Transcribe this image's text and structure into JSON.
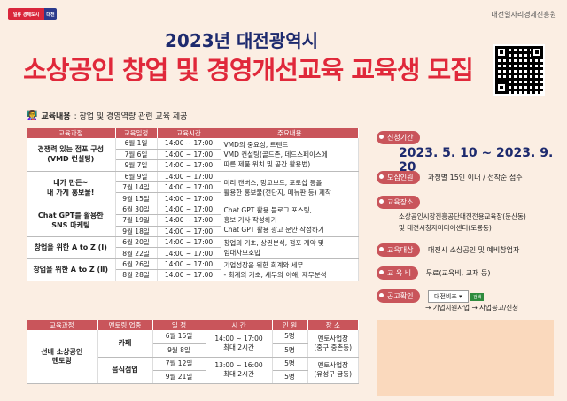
{
  "header": {
    "logo_main": "일류 경제도시",
    "logo_tag": "대전",
    "org": "대전일자리경제진흥원",
    "title1": "2023년 대전광역시",
    "title2": "소상공인 창업 및 경영개선교육 교육생 모집"
  },
  "edu": {
    "label": "교육내용",
    "text": ": 창업 및 경영역량 관련 교육 제공"
  },
  "table1": {
    "headers": [
      "교육과정",
      "교육일정",
      "교육시간",
      "주요내용"
    ],
    "courses": [
      {
        "name": "경쟁력 있는 점포 구성\n(VMD 컨설팅)",
        "dates": [
          "6월 1일",
          "7월 6일",
          "9월 7일"
        ],
        "times": [
          "14:00 ~ 17:00",
          "14:00 ~ 17:00",
          "14:00 ~ 17:00"
        ],
        "desc": "VMD의 중요성, 트렌드\nVMD 컨설팅(골드존, 데드스페이스에\n따른 제품 위치 및 공간 활용법)"
      },
      {
        "name": "내가 만든~\n내 가게 홍보물!",
        "dates": [
          "6월 9일",
          "7월 14일",
          "9월 15일"
        ],
        "times": [
          "14:00 ~ 17:00",
          "14:00 ~ 17:00",
          "14:00 ~ 17:00"
        ],
        "desc": "미리 캔버스, 망고보드, 포토샵 등을\n활용한 홍보물(전단지, 메뉴판 등) 제작"
      },
      {
        "name": "Chat GPT를 활용한\nSNS 마케팅",
        "dates": [
          "6월 30일",
          "7월 19일",
          "9월 18일"
        ],
        "times": [
          "14:00 ~ 17:00",
          "14:00 ~ 17:00",
          "14:00 ~ 17:00"
        ],
        "desc": "Chat GPT 활용 블로그 포스팅,\n홍보 기사 작성하기\nChat GPT 활용 광고 문안 작성하기"
      },
      {
        "name": "창업을 위한 A to Z (Ⅰ)",
        "dates": [
          "6월 20일",
          "8월 22일"
        ],
        "times": [
          "14:00 ~ 17:00",
          "14:00 ~ 17:00"
        ],
        "desc": "창업의 기초, 상권분석, 점포 계약 및\n임대차보호법"
      },
      {
        "name": "창업을 위한 A to Z (Ⅱ)",
        "dates": [
          "6월 26일",
          "8월 28일"
        ],
        "times": [
          "14:00 ~ 17:00",
          "14:00 ~ 17:00"
        ],
        "desc": "기업성장을 위한 회계와 세무\n- 회계의 기초, 세무의 이해, 재무분석"
      }
    ]
  },
  "table2": {
    "headers": [
      "교육과정",
      "멘토링 업종",
      "일 정",
      "시 간",
      "인 원",
      "장 소"
    ],
    "course": "선배 소상공인\n멘토링",
    "rows": [
      {
        "type": "카페",
        "dates": [
          "6월 15일",
          "9월 8일"
        ],
        "time": "14:00 ~ 17:00\n최대 2시간",
        "people": [
          "5명",
          "5명"
        ],
        "place": "멘토사업장\n(중구 중촌동)"
      },
      {
        "type": "음식점업",
        "dates": [
          "7월 12일",
          "9월 21일"
        ],
        "time": "13:00 ~ 16:00\n최대 2시간",
        "people": [
          "5명",
          "5명"
        ],
        "place": "멘토사업장\n(유성구 궁동)"
      }
    ]
  },
  "info": {
    "period_label": "신청기간",
    "period_value": "2023. 5. 10 ~ 2023. 9. 20",
    "people_label": "모집인원",
    "people_value": "과정별 15인 이내 / 선착순 접수",
    "place_label": "교육장소",
    "place_value1": "소상공인시장진흥공단대전전용교육장(둔산동)",
    "place_value2": "및 대전시청자미디어센터(도룡동)",
    "target_label": "교육대상",
    "target_value": "대전시 소상공인 및 예비창업자",
    "fee_label": "교 육 비",
    "fee_value": "무료(교육비, 교재 등)",
    "check_label": "공고확인",
    "check_select": "대전비즈 ▾",
    "check_go": "검색",
    "check_path": "→ 기업지원사업 → 사업공고/신청"
  },
  "colors": {
    "accent": "#c9555b",
    "title_red": "#e0283a",
    "navy": "#1d2a6e",
    "bg": "#fbeee3"
  }
}
